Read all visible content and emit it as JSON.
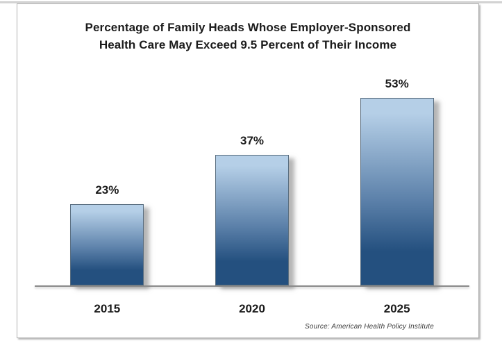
{
  "chart_data": {
    "type": "bar",
    "title": "Percentage of Family Heads Whose Employer-Sponsored Health Care May Exceed 9.5 Percent of Their Income",
    "title_lines": [
      "Percentage of Family Heads Whose Employer-Sponsored",
      "Health Care May Exceed 9.5 Percent of Their Income"
    ],
    "categories": [
      "2015",
      "2020",
      "2025"
    ],
    "values": [
      23,
      37,
      53
    ],
    "value_labels": [
      "23%",
      "37%",
      "53%"
    ],
    "xlabel": "",
    "ylabel": "",
    "ylim": [
      0,
      60
    ],
    "grid": false,
    "legend": false,
    "source": "Source: American Health Policy Institute",
    "colors": {
      "bar_top": "#b5cfe7",
      "bar_mid": "#5b80a9",
      "bar_bottom": "#24507f",
      "bar_border": "#5a6e80",
      "axis": "#8a8a8a",
      "title_text": "#1b1b1b",
      "label_text": "#1b1b1b",
      "source_text": "#3a3a3a",
      "frame_border": "#b0b0b0"
    }
  }
}
